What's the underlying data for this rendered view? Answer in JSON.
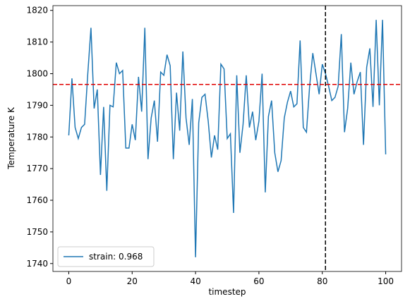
{
  "chart_data": {
    "type": "line",
    "xlabel": "timestep",
    "ylabel": "Temperature K",
    "x": [
      0,
      1,
      2,
      3,
      4,
      5,
      6,
      7,
      8,
      9,
      10,
      11,
      12,
      13,
      14,
      15,
      16,
      17,
      18,
      19,
      20,
      21,
      22,
      23,
      24,
      25,
      26,
      27,
      28,
      29,
      30,
      31,
      32,
      33,
      34,
      35,
      36,
      37,
      38,
      39,
      40,
      41,
      42,
      43,
      44,
      45,
      46,
      47,
      48,
      49,
      50,
      51,
      52,
      53,
      54,
      55,
      56,
      57,
      58,
      59,
      60,
      61,
      62,
      63,
      64,
      65,
      66,
      67,
      68,
      69,
      70,
      71,
      72,
      73,
      74,
      75,
      76,
      77,
      78,
      79,
      80,
      81,
      82,
      83,
      84,
      85,
      86,
      87,
      88,
      89,
      90,
      91,
      92,
      93,
      94,
      95,
      96,
      97,
      98,
      99,
      100
    ],
    "series": [
      {
        "name": "strain: 0.968",
        "color": "#1f77b4",
        "values": [
          1780.5,
          1798.5,
          1783,
          1779.5,
          1783,
          1784,
          1800,
          1814.5,
          1789,
          1795,
          1768,
          1789.5,
          1763,
          1790,
          1789.5,
          1803.5,
          1800,
          1801,
          1776.5,
          1776.5,
          1784,
          1779,
          1799,
          1788,
          1814.5,
          1773,
          1786,
          1791.5,
          1778.5,
          1800.5,
          1799.5,
          1806,
          1802.5,
          1773,
          1794,
          1782,
          1807,
          1786,
          1777.5,
          1792,
          1742,
          1784.5,
          1792.5,
          1793.5,
          1785,
          1773.5,
          1780.5,
          1776,
          1803,
          1801.5,
          1779.5,
          1781,
          1756,
          1799.5,
          1775,
          1784,
          1799.5,
          1783,
          1788,
          1779,
          1785,
          1800,
          1762.5,
          1786.5,
          1791.5,
          1775,
          1769,
          1772.5,
          1786,
          1791,
          1794.5,
          1789.5,
          1790.5,
          1810.5,
          1783,
          1781.5,
          1796,
          1806.5,
          1800,
          1793.5,
          1803,
          1800,
          1796,
          1791.5,
          1792.5,
          1796,
          1812.5,
          1781.5,
          1789,
          1803.5,
          1793.5,
          1797.5,
          1800.5,
          1777.5,
          1802,
          1808,
          1789.5,
          1817,
          1790,
          1817,
          1774.5
        ]
      }
    ],
    "hlines": [
      {
        "y": 1796.6,
        "color": "#e00000"
      }
    ],
    "vlines": [
      {
        "x": 81,
        "color": "#000000"
      }
    ],
    "xlim": [
      -5,
      105
    ],
    "ylim": [
      1737.5,
      1821.5
    ],
    "xticks": [
      0,
      20,
      40,
      60,
      80,
      100
    ],
    "yticks": [
      1740,
      1750,
      1760,
      1770,
      1780,
      1790,
      1800,
      1810,
      1820
    ],
    "legend": "lower left"
  }
}
